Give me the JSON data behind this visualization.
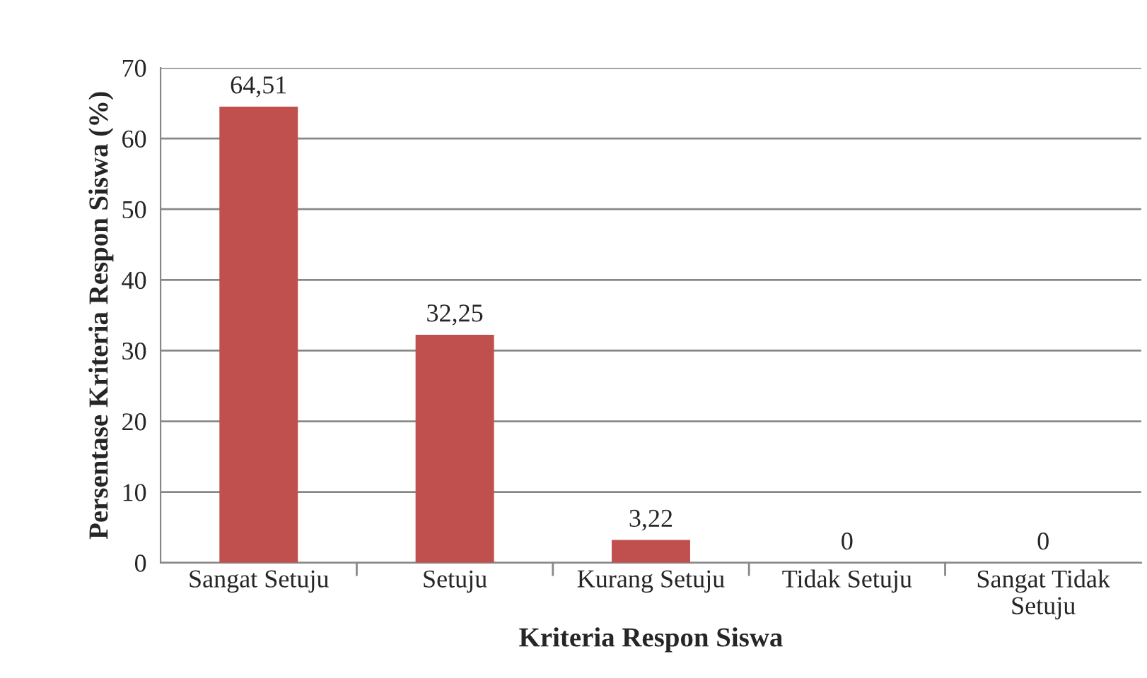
{
  "chart_data": {
    "type": "bar",
    "xlabel": "Kriteria Respon Siswa",
    "ylabel": "Persentase Kriteria Respon Siswa (%)",
    "categories": [
      "Sangat Setuju",
      "Setuju",
      "Kurang Setuju",
      "Tidak Setuju",
      "Sangat Tidak\nSetuju"
    ],
    "values": [
      64.51,
      32.25,
      3.22,
      0,
      0
    ],
    "color": "#c0504d",
    "value_labels": [
      "64,51",
      "32,25",
      "3,22",
      "0",
      "0"
    ],
    "ylim": [
      0,
      70
    ],
    "yticks": [
      0,
      10,
      20,
      30,
      40,
      50,
      60,
      70
    ],
    "grid": "y"
  }
}
